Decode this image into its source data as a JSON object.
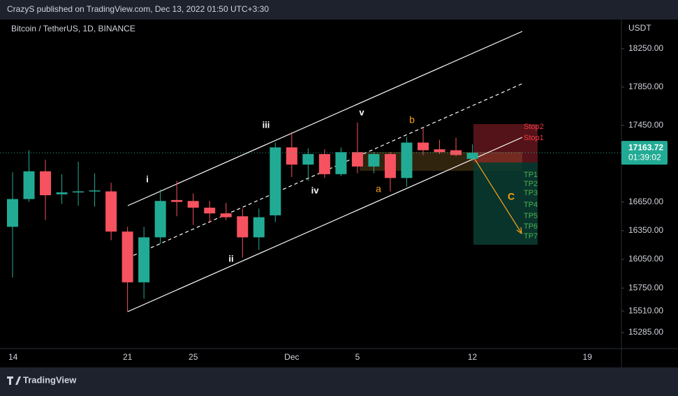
{
  "header": {
    "text": "CrazyS published on TradingView.com, Dec 13, 2022 01:50 UTC+3:30"
  },
  "footer": {
    "brand": "TradingView"
  },
  "chart_data": {
    "type": "candlestick",
    "title": "Bitcoin / TetherUS, 1D, BINANCE",
    "y_axis_label": "USDT",
    "categories": [
      "14",
      null,
      null,
      null,
      null,
      null,
      null,
      "21",
      null,
      null,
      null,
      "25",
      null,
      null,
      null,
      null,
      null,
      "Dec",
      null,
      null,
      null,
      "5",
      null,
      null,
      null,
      null,
      null,
      null,
      "12",
      null,
      null,
      null,
      null,
      null,
      null,
      "19",
      null,
      null
    ],
    "open": [
      16390,
      16680,
      16970,
      16730,
      16760,
      16770,
      16760,
      16340,
      15810,
      16280,
      16670,
      16660,
      16590,
      16530,
      16500,
      16280,
      16510,
      17220,
      17040,
      17150,
      16940,
      17170,
      17020,
      17150,
      16900,
      17270,
      17200,
      17190,
      17100,
      null,
      null,
      null,
      null,
      null,
      null,
      null,
      null,
      null
    ],
    "high": [
      16960,
      17190,
      17090,
      16940,
      17070,
      16950,
      16850,
      16390,
      16390,
      16780,
      16870,
      16740,
      16660,
      16640,
      16580,
      16580,
      17270,
      17380,
      17210,
      17200,
      17220,
      17480,
      17170,
      17170,
      17330,
      17420,
      17300,
      17320,
      17252,
      null,
      null,
      null,
      null,
      null,
      null,
      null,
      null,
      null
    ],
    "low": [
      15860,
      16650,
      16460,
      16630,
      16610,
      16600,
      16250,
      15500,
      15640,
      16210,
      16500,
      16410,
      16430,
      16460,
      16070,
      16150,
      16440,
      16910,
      16870,
      16900,
      16920,
      16950,
      16950,
      16760,
      16810,
      17140,
      17150,
      17130,
      17080,
      null,
      null,
      null,
      null,
      null,
      null,
      null,
      null,
      null
    ],
    "close": [
      16680,
      16970,
      16720,
      16750,
      16760,
      16770,
      16340,
      15810,
      16280,
      16660,
      16650,
      16590,
      16530,
      16490,
      16280,
      16490,
      17220,
      17040,
      17150,
      16940,
      17170,
      17020,
      17150,
      16900,
      17270,
      17190,
      17170,
      17140,
      17163.72,
      null,
      null,
      null,
      null,
      null,
      null,
      null,
      null,
      null
    ],
    "up_color": "#22ab94",
    "down_color": "#f7525f",
    "ylim": [
      15132,
      18556
    ],
    "yticks": [
      {
        "value": 18250,
        "label": "18250.00"
      },
      {
        "value": 17850,
        "label": "17850.00"
      },
      {
        "value": 17450,
        "label": "17450.00"
      },
      {
        "value": 16650,
        "label": "16650.00"
      },
      {
        "value": 16350,
        "label": "16350.00"
      },
      {
        "value": 16050,
        "label": "16050.00"
      },
      {
        "value": 15750,
        "label": "15750.00"
      },
      {
        "value": 15510,
        "label": "15510.00"
      },
      {
        "value": 15285,
        "label": "15285.00"
      }
    ],
    "last_price": {
      "value": 17163.72,
      "label": "17163.72"
    },
    "countdown": "01:39:02",
    "annotations": [
      "i",
      "ii",
      "iii",
      "iv",
      "v",
      "a",
      "b",
      "C",
      "Stop2",
      "Stop1",
      "TP1",
      "TP2",
      "TP3",
      "TP4",
      "TP5",
      "TP6",
      "TP7"
    ]
  }
}
